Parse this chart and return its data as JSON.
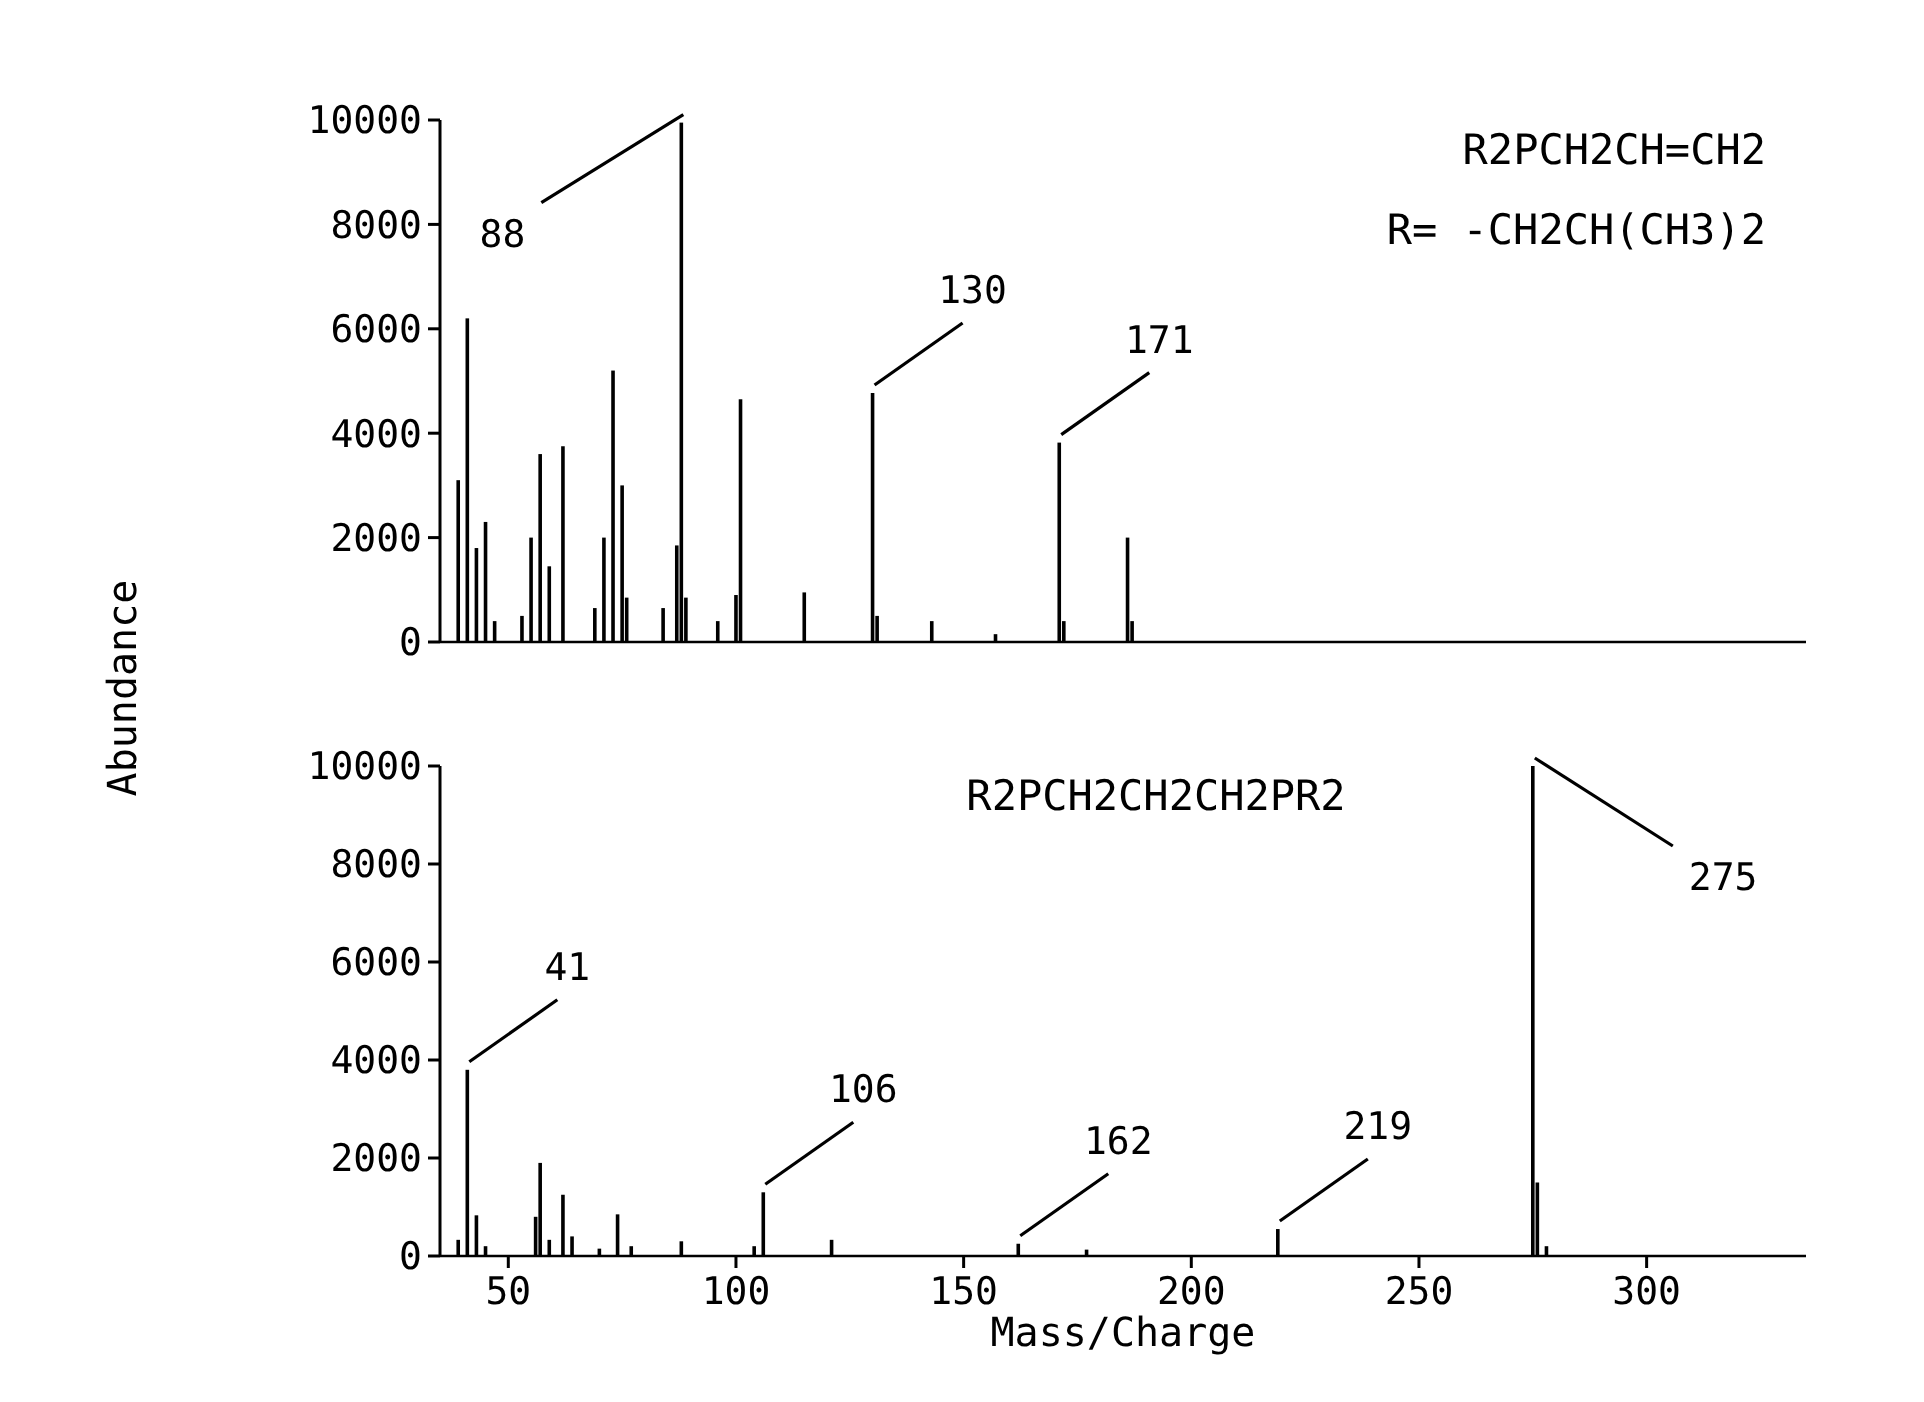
{
  "chart_data": [
    {
      "type": "bar",
      "title": "R2PCH2CH=CH2",
      "subtitle": "R= -CH2CH(CH3)2",
      "color": "#000000",
      "x": [
        39,
        41,
        43,
        45,
        47,
        53,
        55,
        57,
        59,
        62,
        69,
        71,
        73,
        75,
        76,
        84,
        87,
        88,
        89,
        96,
        100,
        101,
        115,
        130,
        131,
        143,
        157,
        171,
        172,
        186,
        187
      ],
      "values": [
        3100,
        6200,
        1800,
        2300,
        400,
        500,
        2000,
        3600,
        1450,
        3750,
        650,
        2000,
        5200,
        3000,
        850,
        650,
        1850,
        9950,
        850,
        400,
        900,
        4650,
        950,
        4770,
        500,
        400,
        150,
        3820,
        400,
        2000,
        400
      ],
      "xlim": [
        35,
        335
      ],
      "ylim": [
        0,
        10000
      ],
      "yticks": [
        0,
        2000,
        4000,
        6000,
        8000,
        10000
      ],
      "tick_labels": "y",
      "annotations": [
        {
          "text": "88",
          "x": 88,
          "y": 9950
        },
        {
          "text": "130",
          "x": 130,
          "y": 4770
        },
        {
          "text": "171",
          "x": 171,
          "y": 3820
        }
      ]
    },
    {
      "type": "bar",
      "title": "R2PCH2CH2CH2PR2",
      "xlabel": "Mass/Charge",
      "ylabel": "Abundance",
      "color": "#000000",
      "x": [
        39,
        41,
        43,
        45,
        56,
        57,
        59,
        62,
        64,
        70,
        74,
        77,
        88,
        104,
        106,
        121,
        162,
        177,
        219,
        275,
        276,
        278
      ],
      "values": [
        330,
        3800,
        830,
        200,
        800,
        1900,
        330,
        1250,
        400,
        150,
        850,
        200,
        300,
        200,
        1300,
        330,
        250,
        130,
        550,
        10000,
        1500,
        200
      ],
      "xlim": [
        35,
        335
      ],
      "xticks": [
        50,
        100,
        150,
        200,
        250,
        300
      ],
      "ylim": [
        0,
        10000
      ],
      "yticks": [
        0,
        2000,
        4000,
        6000,
        8000,
        10000
      ],
      "annotations": [
        {
          "text": "41",
          "x": 41,
          "y": 3800
        },
        {
          "text": "106",
          "x": 106,
          "y": 1300
        },
        {
          "text": "162",
          "x": 162,
          "y": 250
        },
        {
          "text": "219",
          "x": 219,
          "y": 550
        },
        {
          "text": "275",
          "x": 275,
          "y": 10000
        }
      ]
    }
  ]
}
